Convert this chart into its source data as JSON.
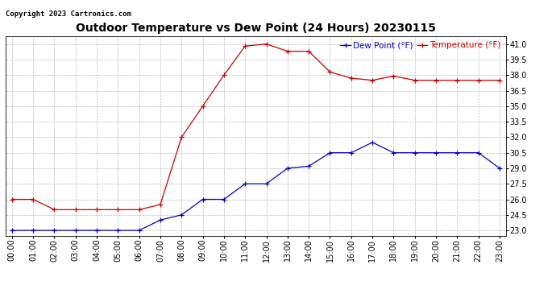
{
  "title": "Outdoor Temperature vs Dew Point (24 Hours) 20230115",
  "copyright": "Copyright 2023 Cartronics.com",
  "legend_dew": "Dew Point (°F)",
  "legend_temp": "Temperature (°F)",
  "hours": [
    0,
    1,
    2,
    3,
    4,
    5,
    6,
    7,
    8,
    9,
    10,
    11,
    12,
    13,
    14,
    15,
    16,
    17,
    18,
    19,
    20,
    21,
    22,
    23
  ],
  "temperature": [
    26.0,
    26.0,
    25.0,
    25.0,
    25.0,
    25.0,
    25.0,
    25.5,
    32.0,
    35.0,
    38.0,
    40.8,
    41.0,
    40.3,
    40.3,
    38.3,
    37.7,
    37.5,
    37.9,
    37.5,
    37.5,
    37.5,
    37.5,
    37.5
  ],
  "dew_point": [
    23.0,
    23.0,
    23.0,
    23.0,
    23.0,
    23.0,
    23.0,
    24.0,
    24.5,
    26.0,
    26.0,
    27.5,
    27.5,
    29.0,
    29.2,
    30.5,
    30.5,
    31.5,
    30.5,
    30.5,
    30.5,
    30.5,
    30.5,
    29.0
  ],
  "ylim_min": 22.5,
  "ylim_max": 41.75,
  "yticks": [
    23.0,
    24.5,
    26.0,
    27.5,
    29.0,
    30.5,
    32.0,
    33.5,
    35.0,
    36.5,
    38.0,
    39.5,
    41.0
  ],
  "temp_color": "#cc0000",
  "dew_color": "#0000cc",
  "bg_color": "#ffffff",
  "grid_color": "#bbbbbb",
  "title_color": "#000000",
  "title_fontsize": 10,
  "axis_fontsize": 7,
  "copyright_fontsize": 6.5
}
